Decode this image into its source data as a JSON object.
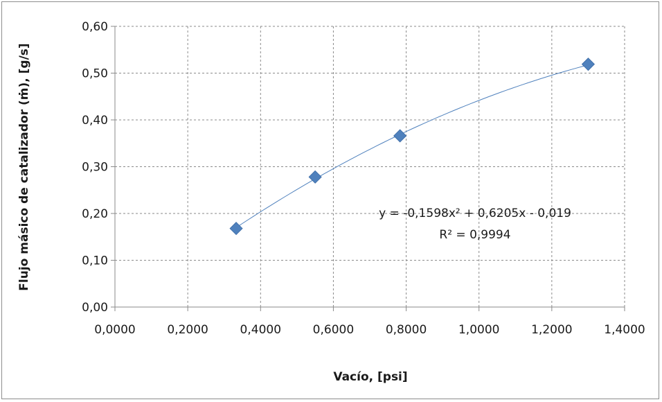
{
  "chart_data": {
    "type": "scatter",
    "xlabel": "Vacío, [psi]",
    "ylabel": "Flujo másico de catalizador (ṁ), [g/s]",
    "xlim": [
      0,
      1.4
    ],
    "ylim": [
      0,
      0.6
    ],
    "x_ticks": [
      "0,0000",
      "0,2000",
      "0,4000",
      "0,6000",
      "0,8000",
      "1,0000",
      "1,2000",
      "1,4000"
    ],
    "y_ticks": [
      "0,00",
      "0,10",
      "0,20",
      "0,30",
      "0,40",
      "0,50",
      "0,60"
    ],
    "grid": true,
    "series": [
      {
        "marker": "diamond",
        "color": "#4f81bd",
        "x": [
          0.333,
          0.55,
          0.783,
          1.3
        ],
        "y": [
          0.168,
          0.278,
          0.366,
          0.519
        ]
      }
    ],
    "trendline": {
      "type": "polynomial",
      "coefficients": [
        -0.1598,
        0.6205,
        -0.019
      ],
      "x_range": [
        0.333,
        1.3
      ],
      "color": "#4f81bd",
      "equation": "y = -0,1598x² + 0,6205x - 0,019",
      "r_squared": "R² = 0,9994"
    }
  }
}
